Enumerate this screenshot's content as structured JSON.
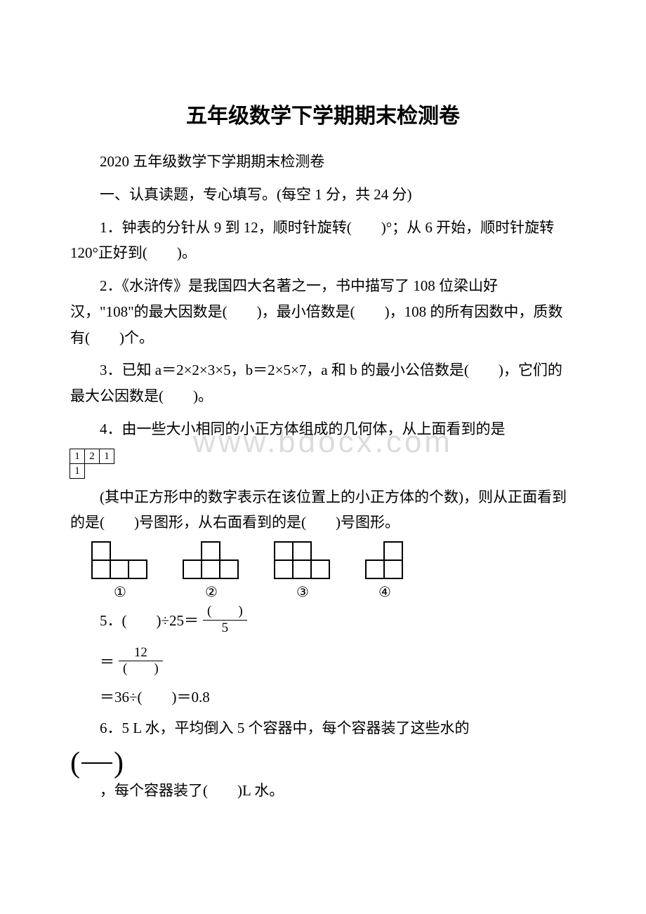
{
  "title": "五年级数学下学期期末检测卷",
  "subtitle": "2020 五年级数学下学期期末检测卷",
  "section1": "一、认真读题，专心填写。(每空 1 分，共 24 分)",
  "q1": "1．钟表的分针从 9 到 12，顺时针旋转(　　)°；从 6 开始，顺时针旋转 120°正好到(　　)。",
  "q2": "2．《水浒传》是我国四大名著之一，书中描写了 108 位梁山好汉，\"108\"的最大因数是(　　)，最小倍数是(　　)，108 的所有因数中，质数有(　　)个。",
  "q3": "3．已知 a＝2×2×3×5，b＝2×5×7，a 和 b 的最小公倍数是(　　)，它们的最大公因数是(　　)。",
  "q4a": "4．由一些大小相同的小正方体组成的几何体，从上面看到的是",
  "q4_grid": {
    "row1": [
      "1",
      "2",
      "1"
    ],
    "row2": [
      "1"
    ]
  },
  "q4b": "(其中正方形中的数字表示在该位置上的小正方体的个数)，则从正面看到的是(　　)号图形，从右面看到的是(　　)号图形。",
  "shapes": {
    "labels": [
      "①",
      "②",
      "③",
      "④"
    ]
  },
  "q5": {
    "prefix": "5．(　　)÷25＝",
    "frac1_num": "(　　)",
    "frac1_den": "5",
    "frac2_num": "12",
    "frac2_den": "(　　)",
    "line3": "＝36÷(　　)＝0.8"
  },
  "q6a": "6．5 L 水，平均倒入 5 个容器中，每个容器装了这些水的",
  "q6b": "，每个容器装了(　　)L 水。",
  "watermark": "www.bdocx.com"
}
